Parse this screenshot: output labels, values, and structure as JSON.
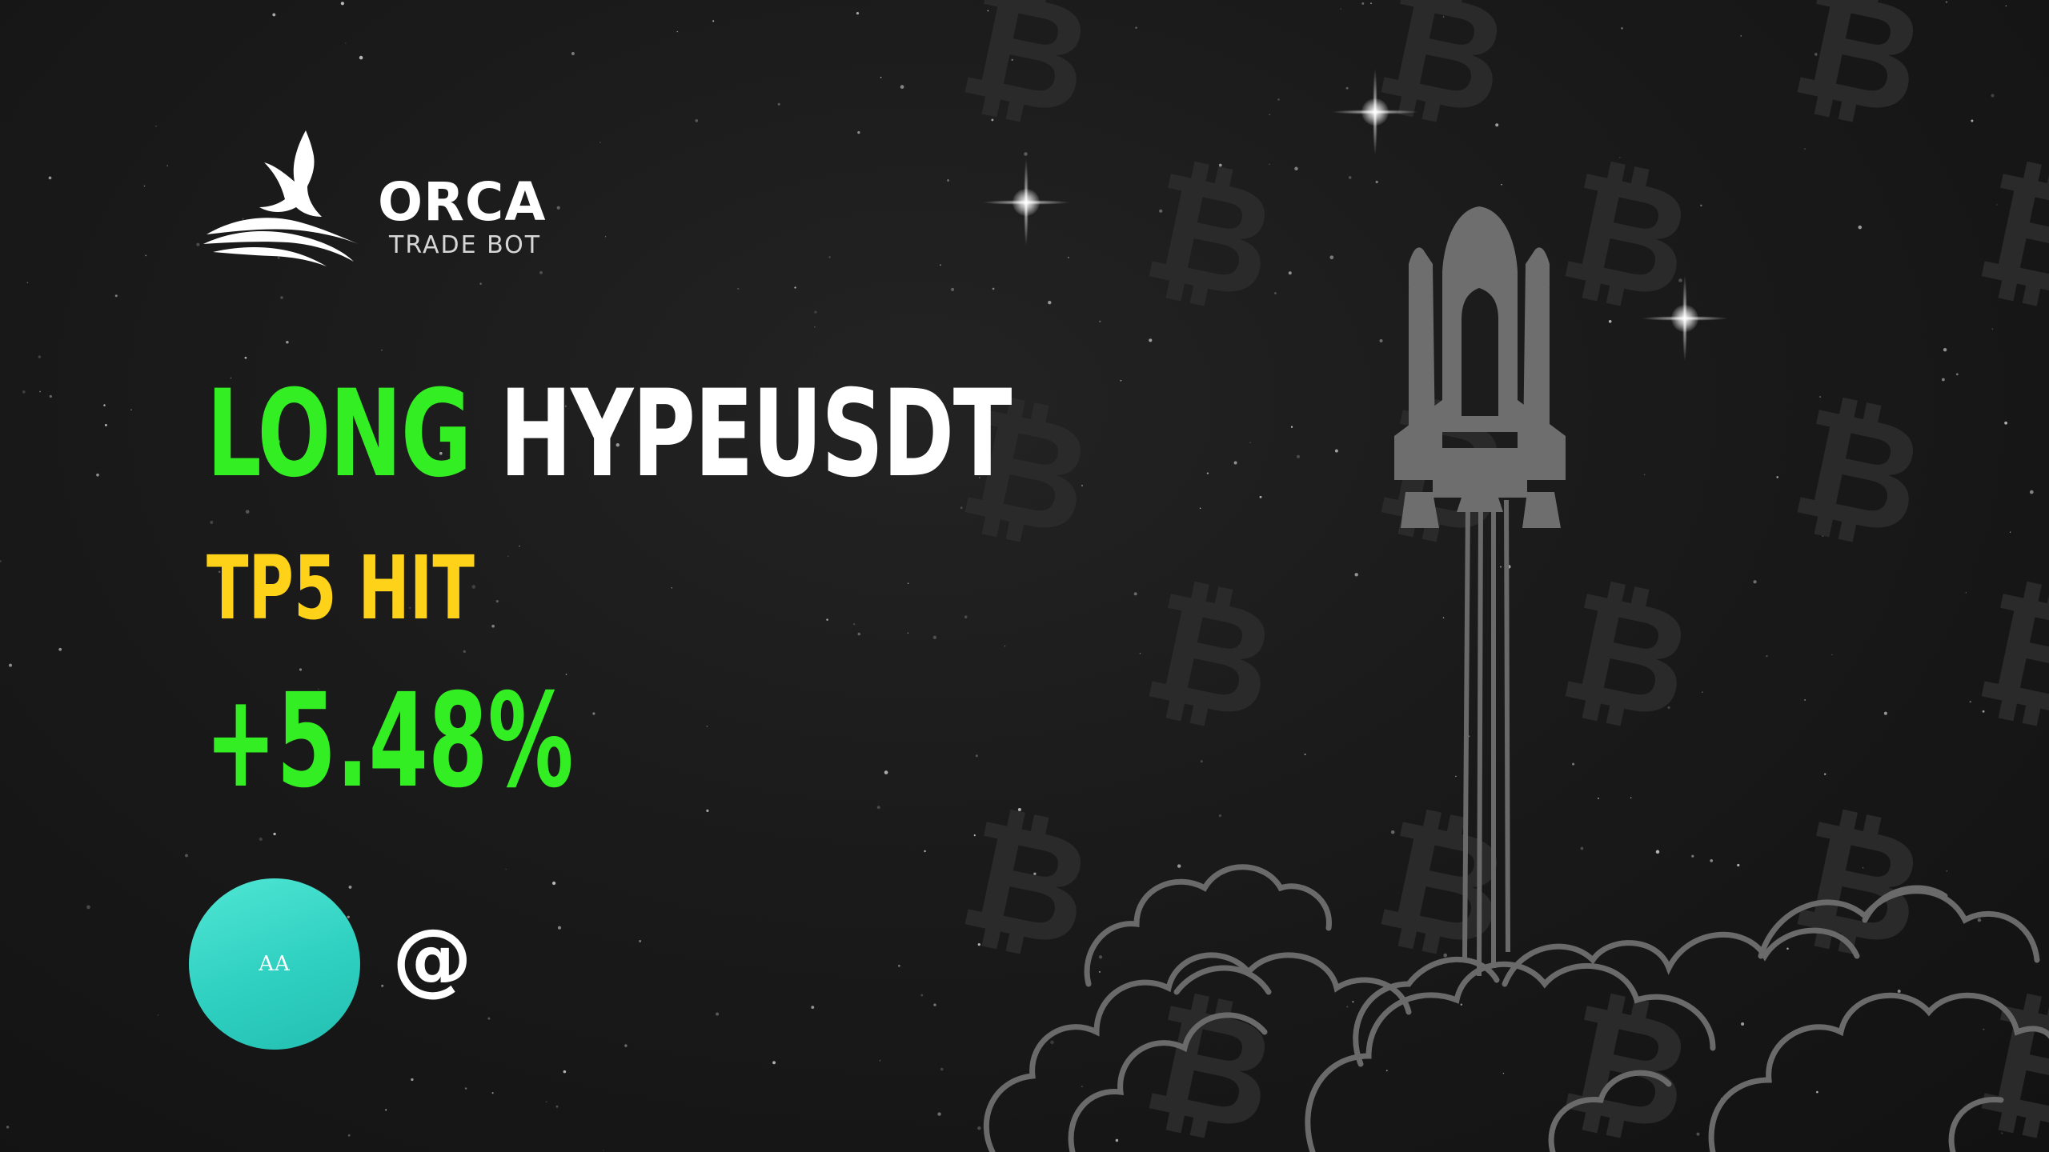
{
  "brand": {
    "name": "ORCA",
    "tagline": "TRADE BOT",
    "logo_icon": "orca-tail-waves-icon",
    "color": "#ffffff"
  },
  "trade": {
    "side": "LONG",
    "pair": "HYPEUSDT",
    "target_status": "TP5 HIT",
    "profit": "+5.48%"
  },
  "user": {
    "avatar_initials": "AA",
    "handle": "@"
  },
  "illustration": {
    "rocket_icon": "space-shuttle-icon",
    "cloud_icon": "launch-smoke-cloud-icon",
    "watermark_icon": "bitcoin-icon",
    "watermark_symbol": "₿",
    "sparkle_icon": "star-sparkle-icon"
  },
  "colors": {
    "background": "#1a1a1a",
    "side_accent": "#33ee22",
    "profit_accent": "#33ee22",
    "target_accent": "#ffd21a",
    "avatar": "#2fd0c1",
    "illustration_gray": "#6a6a6a"
  }
}
